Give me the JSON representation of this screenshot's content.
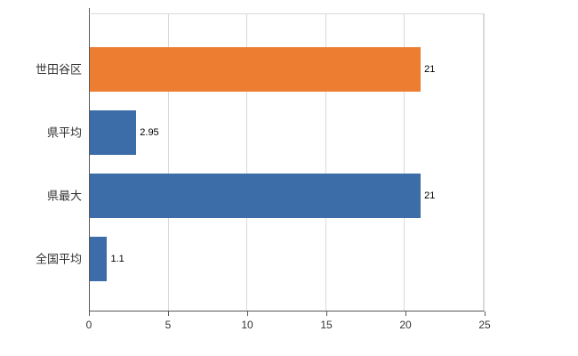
{
  "chart_data": {
    "type": "bar",
    "orientation": "horizontal",
    "title": "",
    "xlabel": "",
    "ylabel": "",
    "categories": [
      "世田谷区",
      "県平均",
      "県最大",
      "全国平均"
    ],
    "values": [
      21,
      2.95,
      21,
      1.1
    ],
    "value_labels": [
      "21",
      "2.95",
      "21",
      "1.1"
    ],
    "bar_colors": [
      "#ED7D31",
      "#3D6DA8",
      "#3D6DA8",
      "#3D6DA8"
    ],
    "xlim": [
      0,
      25
    ],
    "x_ticks": [
      0,
      5,
      10,
      15,
      20,
      25
    ],
    "x_tick_labels": [
      "0",
      "5",
      "10",
      "15",
      "20",
      "25"
    ],
    "grid": true,
    "legend": "none",
    "colors": {
      "grid": "#d9d9d9",
      "axis": "#595959",
      "text": "#333333",
      "background": "#ffffff"
    }
  }
}
